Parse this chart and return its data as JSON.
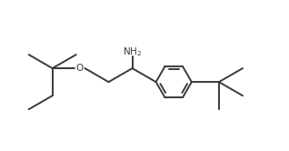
{
  "background_color": "#ffffff",
  "line_color": "#3a3a3a",
  "line_width": 1.4,
  "font_size": 7.5,
  "figsize": [
    3.18,
    1.66
  ],
  "dpi": 100,
  "xlim": [
    0,
    10
  ],
  "ylim": [
    0,
    5.2
  ]
}
